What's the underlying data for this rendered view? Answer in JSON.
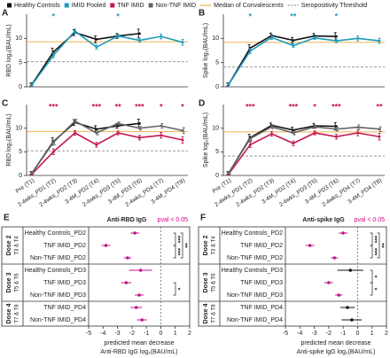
{
  "chart_data": [
    {
      "type": "line",
      "panel": "A",
      "ylabel": "RBD log₂(BAU/mL)",
      "categories": [
        null,
        null,
        null,
        null,
        null,
        null,
        null,
        null
      ],
      "ylim": [
        0,
        15
      ],
      "yticks": [
        0,
        5,
        10
      ],
      "series": [
        {
          "name": "Healthy Controls",
          "color": "#111111",
          "values": [
            0.5,
            7.2,
            11.2,
            9.8,
            10.5,
            11.0,
            null,
            null
          ],
          "errors": [
            0.3,
            0.8,
            0.6,
            0.7,
            0.5,
            0.9,
            null,
            null
          ]
        },
        {
          "name": "IMID Pooled",
          "color": "#1e9bb8",
          "values": [
            0.4,
            6.5,
            11.5,
            8.2,
            10.5,
            9.6,
            10.4,
            9.2
          ],
          "errors": [
            0.2,
            0.5,
            0.4,
            0.4,
            0.3,
            0.4,
            0.5,
            0.6
          ]
        }
      ],
      "hlines": [
        {
          "name": "Median of Convalescents",
          "value": 9.3,
          "color": "#f0b050",
          "dashed": false
        },
        {
          "name": "Seropositivity Threshold",
          "value": 5.2,
          "color": "#999999",
          "dashed": true
        }
      ],
      "significance": [
        null,
        "*",
        null,
        null,
        "*",
        null,
        null,
        null
      ],
      "significance_color": "#1e9bb8"
    },
    {
      "type": "line",
      "panel": "B",
      "ylabel": "Spike log₂(BAU/mL)",
      "categories": [
        null,
        null,
        null,
        null,
        null,
        null,
        null,
        null
      ],
      "ylim": [
        0,
        15
      ],
      "yticks": [
        0,
        5,
        10
      ],
      "series": [
        {
          "name": "Healthy Controls",
          "color": "#111111",
          "values": [
            0.5,
            8.0,
            10.6,
            9.6,
            10.5,
            10.4,
            null,
            null
          ],
          "errors": [
            0.3,
            0.7,
            0.5,
            0.6,
            0.5,
            0.8,
            null,
            null
          ]
        },
        {
          "name": "IMID Pooled",
          "color": "#1e9bb8",
          "values": [
            0.5,
            7.4,
            10.2,
            8.5,
            10.1,
            9.5,
            10.0,
            9.5
          ],
          "errors": [
            0.2,
            0.5,
            0.4,
            0.4,
            0.3,
            0.4,
            0.5,
            0.5
          ]
        }
      ],
      "hlines": [
        {
          "name": "Median of Convalescents",
          "value": 9.2,
          "color": "#f0b050",
          "dashed": false
        },
        {
          "name": "Seropositivity Threshold",
          "value": 4.1,
          "color": "#999999",
          "dashed": true
        }
      ],
      "significance": [
        null,
        "*",
        null,
        "**",
        null,
        "*",
        null,
        null
      ],
      "significance_color": "#1e9bb8"
    },
    {
      "type": "line",
      "panel": "C",
      "ylabel": "RBD log₂(BAU/mL)",
      "categories": [
        "Pre (T1)",
        "2-4wks_PD1 (T2)",
        "2-4wks_PD2 (T3)",
        "3-4M_PD2 (T4)",
        "2-4wks_PD3 (T5)",
        "3-4M_PD3 (T6)",
        "2-4wks_PD4 (T7)",
        "3-4M_PD4 (T8)"
      ],
      "ylim": [
        0,
        15
      ],
      "yticks": [
        0,
        5,
        10
      ],
      "series": [
        {
          "name": "Healthy Controls",
          "color": "#111111",
          "values": [
            0.5,
            7.2,
            11.2,
            9.8,
            10.5,
            11.0,
            null,
            null
          ],
          "errors": [
            0.3,
            0.8,
            0.6,
            0.7,
            0.5,
            0.9,
            null,
            null
          ]
        },
        {
          "name": "TNF IMID",
          "color": "#c4174f",
          "values": [
            0.3,
            5.0,
            9.0,
            6.5,
            9.0,
            8.0,
            8.5,
            7.5
          ],
          "errors": [
            0.2,
            0.6,
            0.5,
            0.5,
            0.4,
            0.5,
            0.6,
            0.7
          ]
        },
        {
          "name": "Non-TNF IMID",
          "color": "#666666",
          "values": [
            0.5,
            7.0,
            11.5,
            9.0,
            11.0,
            10.0,
            10.5,
            9.5
          ],
          "errors": [
            0.2,
            0.5,
            0.4,
            0.4,
            0.3,
            0.4,
            0.5,
            0.6
          ]
        }
      ],
      "hlines": [
        {
          "name": "Median of Convalescents",
          "value": 9.3,
          "color": "#f0b050",
          "dashed": false
        },
        {
          "name": "Seropositivity Threshold",
          "value": 5.2,
          "color": "#999999",
          "dashed": true
        }
      ],
      "significance": [
        null,
        "***",
        null,
        "***",
        "**",
        "***",
        "*",
        "*"
      ],
      "significance_color": "#c4174f"
    },
    {
      "type": "line",
      "panel": "D",
      "ylabel": "Spike log₂(BAU/mL)",
      "categories": [
        "Pre (T1)",
        "2-4wks_PD1 (T2)",
        "2-4wks_PD2 (T3)",
        "3-4M_PD2 (T4)",
        "2-4wks_PD3 (T5)",
        "3-4M_PD3 (T6)",
        "2-4wks_PD4 (T7)",
        "3-4M_PD4 (T8)"
      ],
      "ylim": [
        0,
        15
      ],
      "yticks": [
        0,
        5,
        10
      ],
      "series": [
        {
          "name": "Healthy Controls",
          "color": "#111111",
          "values": [
            0.5,
            8.0,
            10.6,
            9.6,
            10.5,
            10.4,
            null,
            null
          ],
          "errors": [
            0.3,
            0.7,
            0.5,
            0.6,
            0.5,
            0.8,
            null,
            null
          ]
        },
        {
          "name": "TNF IMID",
          "color": "#c4174f",
          "values": [
            0.3,
            6.5,
            8.8,
            6.8,
            9.0,
            8.2,
            9.0,
            8.2
          ],
          "errors": [
            0.2,
            0.6,
            0.5,
            0.5,
            0.4,
            0.5,
            0.6,
            0.7
          ]
        },
        {
          "name": "Non-TNF IMID",
          "color": "#666666",
          "values": [
            0.5,
            7.8,
            10.3,
            9.0,
            10.3,
            9.8,
            10.2,
            9.8
          ],
          "errors": [
            0.2,
            0.5,
            0.4,
            0.4,
            0.3,
            0.4,
            0.5,
            0.5
          ]
        }
      ],
      "hlines": [
        {
          "name": "Median of Convalescents",
          "value": 9.2,
          "color": "#f0b050",
          "dashed": false
        },
        {
          "name": "Seropositivity Threshold",
          "value": 4.1,
          "color": "#999999",
          "dashed": true
        }
      ],
      "significance": [
        null,
        "***",
        null,
        "***",
        "*",
        "***",
        null,
        "**"
      ],
      "significance_color": "#c4174f"
    },
    {
      "type": "forest",
      "panel": "E",
      "title": "Anti-RBD IgG",
      "pval_label": "pval < 0.05",
      "pval_color": "#e0008a",
      "xlim": [
        -5,
        2
      ],
      "xticks": [
        -5,
        -4,
        -3,
        -2,
        -1,
        0,
        1,
        2
      ],
      "xlabel": [
        "predicted mean decrease",
        "Anti-RBD IgG log₂(BAU/mL)"
      ],
      "groups": [
        {
          "label": "Dose 2",
          "sublabel": "T3 & T4",
          "categories": [
            "Healthy Controls_PD2",
            "TNF IMID_PD2",
            "Non-TNF IMID_PD2"
          ],
          "values": [
            -1.8,
            -3.8,
            -2.3
          ],
          "errors": [
            0.3,
            0.3,
            0.25
          ],
          "colors": [
            "#c0178a",
            "#c0178a",
            "#c0178a"
          ]
        },
        {
          "label": "Dose 3",
          "sublabel": "T5 & T6",
          "categories": [
            "Healthy Controls_PD3",
            "TNF IMID_PD3",
            "Non-TNF IMID_PD3"
          ],
          "values": [
            -1.4,
            -2.4,
            -1.5
          ],
          "errors": [
            0.8,
            0.35,
            0.3
          ],
          "colors": [
            "#c0178a",
            "#c0178a",
            "#c0178a"
          ]
        },
        {
          "label": "Dose 4",
          "sublabel": "T7 & T8",
          "categories": [
            "TNF IMID_PD4",
            "Non-TNF IMID_PD4"
          ],
          "values": [
            -1.7,
            -1.3
          ],
          "errors": [
            0.4,
            0.35
          ],
          "colors": [
            "#c0178a",
            "#c0178a"
          ]
        }
      ],
      "comparisons": [
        {
          "between": [
            "Healthy Controls_PD2",
            "TNF IMID_PD2"
          ],
          "label": "***"
        },
        {
          "between": [
            "TNF IMID_PD2",
            "Non-TNF IMID_PD2"
          ],
          "label": "***"
        },
        {
          "between": [
            "Healthy Controls_PD2",
            "Non-TNF IMID_PD2"
          ],
          "label": "**"
        },
        {
          "between": [
            "TNF IMID_PD3",
            "Non-TNF IMID_PD3"
          ],
          "label": "*"
        }
      ]
    },
    {
      "type": "forest",
      "panel": "F",
      "title": "Anti-spike IgG",
      "pval_label": "pval < 0.05",
      "pval_color": "#e0008a",
      "xlim": [
        -5,
        2
      ],
      "xticks": [
        -5,
        -4,
        -3,
        -2,
        -1,
        0,
        1,
        2
      ],
      "xlabel": [
        "predicted mean decrease",
        "Anti-spike IgG log₂(BAU/mL)"
      ],
      "groups": [
        {
          "label": "Dose 2",
          "sublabel": "T3 & T4",
          "categories": [
            "Healthy Controls_PD2",
            "TNF IMID_PD2",
            "Non-TNF IMID_PD2"
          ],
          "values": [
            -1.0,
            -3.3,
            -1.6
          ],
          "errors": [
            0.3,
            0.3,
            0.25
          ],
          "colors": [
            "#c0178a",
            "#c0178a",
            "#c0178a"
          ]
        },
        {
          "label": "Dose 3",
          "sublabel": "T5 & T6",
          "categories": [
            "Healthy Controls_PD3",
            "TNF IMID_PD3",
            "Non-TNF IMID_PD3"
          ],
          "values": [
            -0.5,
            -2.0,
            -1.3
          ],
          "errors": [
            0.9,
            0.3,
            0.25
          ],
          "colors": [
            "#111111",
            "#c0178a",
            "#c0178a"
          ]
        },
        {
          "label": "Dose 4",
          "sublabel": "T7 & T8",
          "categories": [
            "TNF IMID_PD4",
            "Non-TNF IMID_PD4"
          ],
          "values": [
            -0.7,
            -0.4
          ],
          "errors": [
            0.5,
            0.7
          ],
          "colors": [
            "#111111",
            "#111111"
          ]
        }
      ],
      "comparisons": [
        {
          "between": [
            "Healthy Controls_PD2",
            "TNF IMID_PD2"
          ],
          "label": "***"
        },
        {
          "between": [
            "TNF IMID_PD2",
            "Non-TNF IMID_PD2"
          ],
          "label": "***"
        },
        {
          "between": [
            "Healthy Controls_PD2",
            "Non-TNF IMID_PD2"
          ],
          "label": "**"
        },
        {
          "between": [
            "Healthy Controls_PD3",
            "TNF IMID_PD3"
          ],
          "label": "*"
        },
        {
          "between": [
            "TNF IMID_PD3",
            "Non-TNF IMID_PD3"
          ],
          "label": "*"
        }
      ]
    }
  ]
}
